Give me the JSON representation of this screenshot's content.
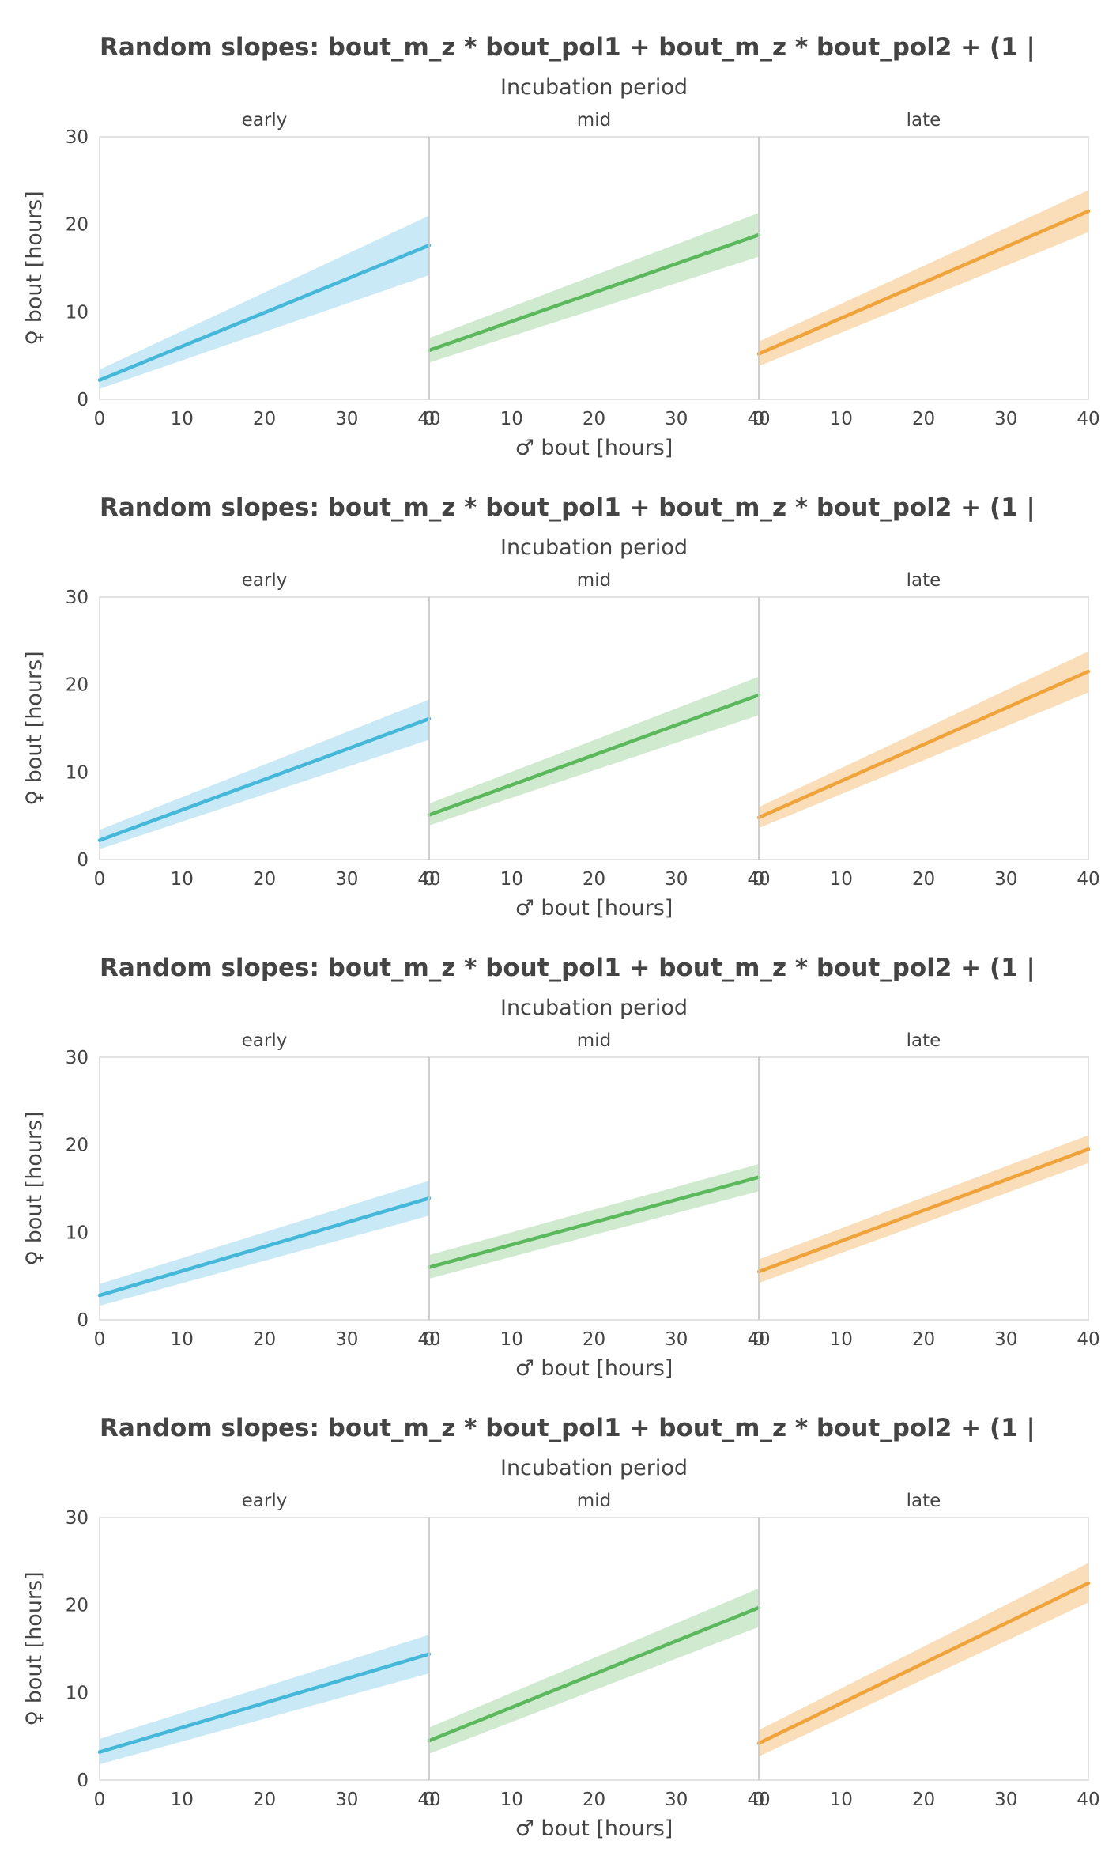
{
  "chart_data": [
    {
      "type": "line",
      "title": "Random slopes: bout_m_z * bout_pol1 + bout_m_z * bout_pol2 + (1 |",
      "facet_title": "Incubation period",
      "xlabel": "♂ bout [hours]",
      "ylabel": "♀ bout [hours]",
      "xlim": [
        0,
        40
      ],
      "ylim": [
        0,
        30
      ],
      "x_ticks": [
        "0",
        "10",
        "20",
        "30",
        "40"
      ],
      "y_ticks": [
        "0",
        "10",
        "20",
        "30"
      ],
      "grid": false,
      "panels": [
        {
          "label": "early",
          "color": "#45b7d9",
          "band_color": "#c5e8f4",
          "x": [
            0,
            40
          ],
          "y": [
            2.2,
            17.6
          ],
          "lower": [
            1.2,
            14.2
          ],
          "upper": [
            3.4,
            21.0
          ]
        },
        {
          "label": "mid",
          "color": "#5cb85c",
          "band_color": "#cde9cd",
          "x": [
            0,
            40
          ],
          "y": [
            5.6,
            18.8
          ],
          "lower": [
            4.2,
            16.3
          ],
          "upper": [
            7.0,
            21.3
          ]
        },
        {
          "label": "late",
          "color": "#f0a33a",
          "band_color": "#f9dcb5",
          "x": [
            0,
            40
          ],
          "y": [
            5.2,
            21.5
          ],
          "lower": [
            3.8,
            19.1
          ],
          "upper": [
            6.6,
            23.9
          ]
        }
      ]
    },
    {
      "type": "line",
      "title": "Random slopes: bout_m_z * bout_pol1 + bout_m_z * bout_pol2 + (1 |",
      "facet_title": "Incubation period",
      "xlabel": "♂ bout [hours]",
      "ylabel": "♀ bout [hours]",
      "xlim": [
        0,
        40
      ],
      "ylim": [
        0,
        30
      ],
      "x_ticks": [
        "0",
        "10",
        "20",
        "30",
        "40"
      ],
      "y_ticks": [
        "0",
        "10",
        "20",
        "30"
      ],
      "grid": false,
      "panels": [
        {
          "label": "early",
          "color": "#45b7d9",
          "band_color": "#c5e8f4",
          "x": [
            0,
            40
          ],
          "y": [
            2.2,
            16.1
          ],
          "lower": [
            1.2,
            13.7
          ],
          "upper": [
            3.4,
            18.3
          ]
        },
        {
          "label": "mid",
          "color": "#5cb85c",
          "band_color": "#cde9cd",
          "x": [
            0,
            40
          ],
          "y": [
            5.1,
            18.8
          ],
          "lower": [
            3.9,
            16.5
          ],
          "upper": [
            6.4,
            20.9
          ]
        },
        {
          "label": "late",
          "color": "#f0a33a",
          "band_color": "#f9dcb5",
          "x": [
            0,
            40
          ],
          "y": [
            4.8,
            21.5
          ],
          "lower": [
            3.6,
            19.1
          ],
          "upper": [
            6.0,
            23.8
          ]
        }
      ]
    },
    {
      "type": "line",
      "title": "Random slopes: bout_m_z * bout_pol1 + bout_m_z * bout_pol2 + (1 |",
      "facet_title": "Incubation period",
      "xlabel": "♂ bout [hours]",
      "ylabel": "♀ bout [hours]",
      "xlim": [
        0,
        40
      ],
      "ylim": [
        0,
        30
      ],
      "x_ticks": [
        "0",
        "10",
        "20",
        "30",
        "40"
      ],
      "y_ticks": [
        "0",
        "10",
        "20",
        "30"
      ],
      "grid": false,
      "panels": [
        {
          "label": "early",
          "color": "#45b7d9",
          "band_color": "#c5e8f4",
          "x": [
            0,
            40
          ],
          "y": [
            2.8,
            13.9
          ],
          "lower": [
            1.6,
            11.9
          ],
          "upper": [
            4.1,
            15.9
          ]
        },
        {
          "label": "mid",
          "color": "#5cb85c",
          "band_color": "#cde9cd",
          "x": [
            0,
            40
          ],
          "y": [
            6.0,
            16.3
          ],
          "lower": [
            4.7,
            14.7
          ],
          "upper": [
            7.4,
            17.8
          ]
        },
        {
          "label": "late",
          "color": "#f0a33a",
          "band_color": "#f9dcb5",
          "x": [
            0,
            40
          ],
          "y": [
            5.5,
            19.5
          ],
          "lower": [
            4.2,
            17.9
          ],
          "upper": [
            6.9,
            21.1
          ]
        }
      ]
    },
    {
      "type": "line",
      "title": "Random slopes: bout_m_z * bout_pol1 + bout_m_z * bout_pol2 + (1 |",
      "facet_title": "Incubation period",
      "xlabel": "♂ bout [hours]",
      "ylabel": "♀ bout [hours]",
      "xlim": [
        0,
        40
      ],
      "ylim": [
        0,
        30
      ],
      "x_ticks": [
        "0",
        "10",
        "20",
        "30",
        "40"
      ],
      "y_ticks": [
        "0",
        "10",
        "20",
        "30"
      ],
      "grid": false,
      "panels": [
        {
          "label": "early",
          "color": "#45b7d9",
          "band_color": "#c5e8f4",
          "x": [
            0,
            40
          ],
          "y": [
            3.2,
            14.4
          ],
          "lower": [
            1.8,
            12.2
          ],
          "upper": [
            4.7,
            16.6
          ]
        },
        {
          "label": "mid",
          "color": "#5cb85c",
          "band_color": "#cde9cd",
          "x": [
            0,
            40
          ],
          "y": [
            4.5,
            19.7
          ],
          "lower": [
            3.0,
            17.5
          ],
          "upper": [
            6.0,
            21.9
          ]
        },
        {
          "label": "late",
          "color": "#f0a33a",
          "band_color": "#f9dcb5",
          "x": [
            0,
            40
          ],
          "y": [
            4.2,
            22.5
          ],
          "lower": [
            2.7,
            20.3
          ],
          "upper": [
            5.7,
            24.8
          ]
        }
      ]
    }
  ]
}
